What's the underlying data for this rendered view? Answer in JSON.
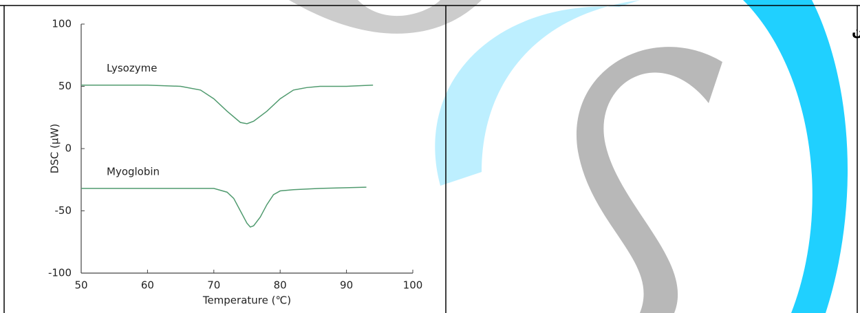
{
  "table": {
    "label": "پروتئین"
  },
  "chart_data": {
    "type": "line",
    "xlabel": "Temperature (℃)",
    "ylabel": "DSC (µW)",
    "xlim": [
      50,
      100
    ],
    "xticks": [
      50,
      60,
      70,
      80,
      90,
      100
    ],
    "ylim": [
      -100,
      100
    ],
    "yticks": [
      100,
      50,
      0,
      -50,
      -100
    ],
    "series": [
      {
        "name": "Lysozyme",
        "color": "#4f9a6e",
        "x": [
          50,
          55,
          60,
          65,
          68,
          70,
          72,
          74,
          75,
          76,
          78,
          80,
          82,
          84,
          86,
          90,
          94
        ],
        "values": [
          51,
          51,
          51,
          50,
          47,
          40,
          30,
          21,
          20,
          22,
          30,
          40,
          47,
          49,
          50,
          50,
          51
        ]
      },
      {
        "name": "Myoglobin",
        "color": "#4f9a6e",
        "x": [
          50,
          60,
          70,
          72,
          73,
          74,
          75,
          75.5,
          76,
          77,
          78,
          79,
          80,
          82,
          86,
          93
        ],
        "values": [
          -32,
          -32,
          -32,
          -35,
          -40,
          -50,
          -60,
          -63,
          -62,
          -55,
          -45,
          -37,
          -34,
          -33,
          -32,
          -31
        ]
      }
    ]
  }
}
